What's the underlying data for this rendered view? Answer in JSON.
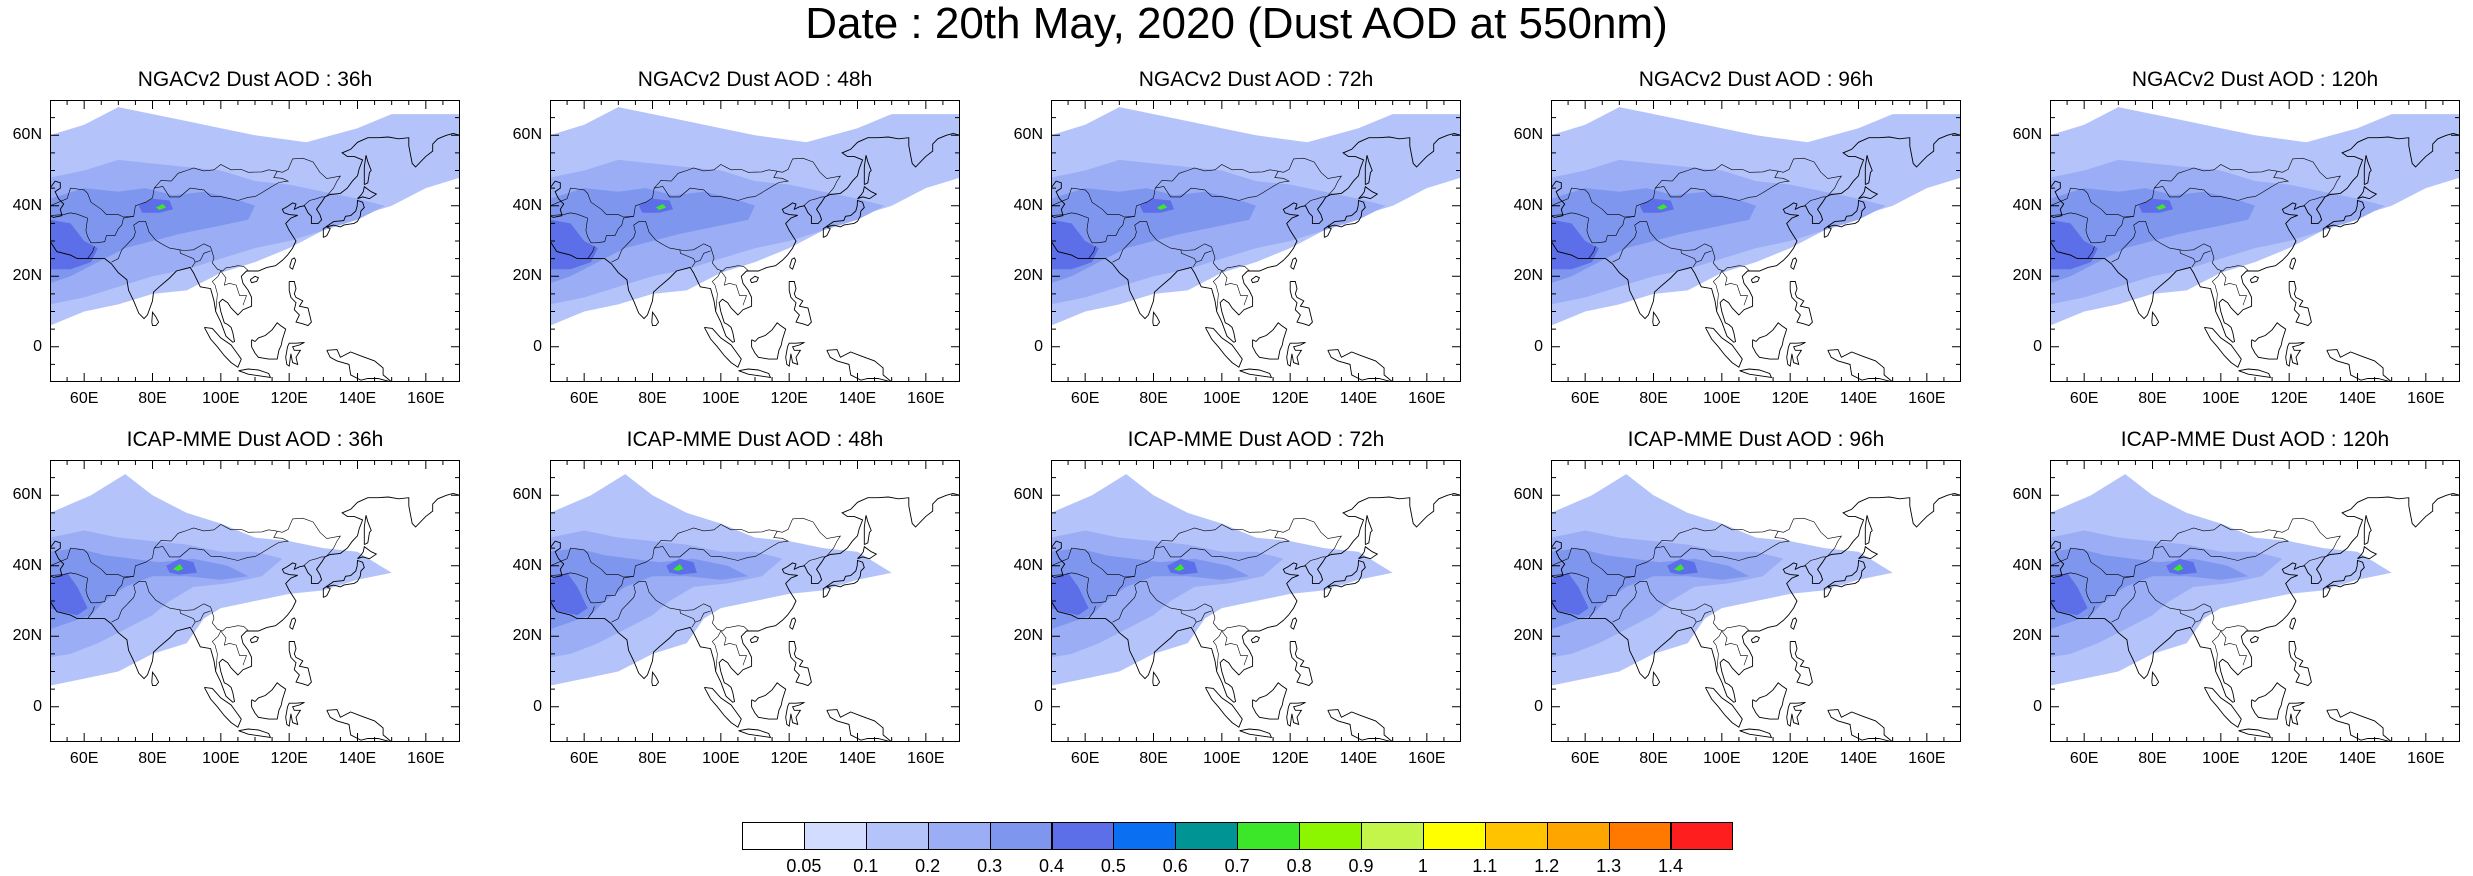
{
  "title": "Date : 20th May, 2020 (Dust AOD at 550nm)",
  "panels": [
    {
      "title": "NGACv2 Dust AOD : 36h",
      "model": "NGACv2",
      "lead": "36h"
    },
    {
      "title": "NGACv2 Dust AOD : 48h",
      "model": "NGACv2",
      "lead": "48h"
    },
    {
      "title": "NGACv2 Dust AOD : 72h",
      "model": "NGACv2",
      "lead": "72h"
    },
    {
      "title": "NGACv2 Dust AOD : 96h",
      "model": "NGACv2",
      "lead": "96h"
    },
    {
      "title": "NGACv2 Dust AOD : 120h",
      "model": "NGACv2",
      "lead": "120h"
    },
    {
      "title": "ICAP-MME Dust AOD : 36h",
      "model": "ICAP-MME",
      "lead": "36h"
    },
    {
      "title": "ICAP-MME Dust AOD : 48h",
      "model": "ICAP-MME",
      "lead": "48h"
    },
    {
      "title": "ICAP-MME Dust AOD : 72h",
      "model": "ICAP-MME",
      "lead": "72h"
    },
    {
      "title": "ICAP-MME Dust AOD : 96h",
      "model": "ICAP-MME",
      "lead": "96h"
    },
    {
      "title": "ICAP-MME Dust AOD : 120h",
      "model": "ICAP-MME",
      "lead": "120h"
    }
  ],
  "map": {
    "lon_range": [
      50,
      170
    ],
    "lat_range": [
      -10,
      70
    ],
    "lat_ticks": [
      {
        "value": 60,
        "label": "60N"
      },
      {
        "value": 40,
        "label": "40N"
      },
      {
        "value": 20,
        "label": "20N"
      },
      {
        "value": 0,
        "label": "0"
      }
    ],
    "lon_ticks": [
      {
        "value": 60,
        "label": "60E"
      },
      {
        "value": 80,
        "label": "80E"
      },
      {
        "value": 100,
        "label": "100E"
      },
      {
        "value": 120,
        "label": "120E"
      },
      {
        "value": 140,
        "label": "140E"
      },
      {
        "value": 160,
        "label": "160E"
      }
    ]
  },
  "colorbar": {
    "labels": [
      "0.05",
      "0.1",
      "0.2",
      "0.3",
      "0.4",
      "0.5",
      "0.6",
      "0.7",
      "0.8",
      "0.9",
      "1",
      "1.1",
      "1.2",
      "1.3",
      "1.4"
    ],
    "colors": [
      "#ffffff",
      "#d2dcff",
      "#b4c3fa",
      "#9aadf5",
      "#7f96ee",
      "#5c6ee8",
      "#0a6ff0",
      "#009494",
      "#3ce628",
      "#8cf500",
      "#c3f54b",
      "#ffff00",
      "#ffc300",
      "#ffa500",
      "#ff7800",
      "#ff1e1e"
    ]
  },
  "dust_field_levels": {
    "band_light": 0.1,
    "band_mid": 0.2,
    "core_mid": 0.3,
    "core_strong": 0.4,
    "hotspot": 0.7
  }
}
